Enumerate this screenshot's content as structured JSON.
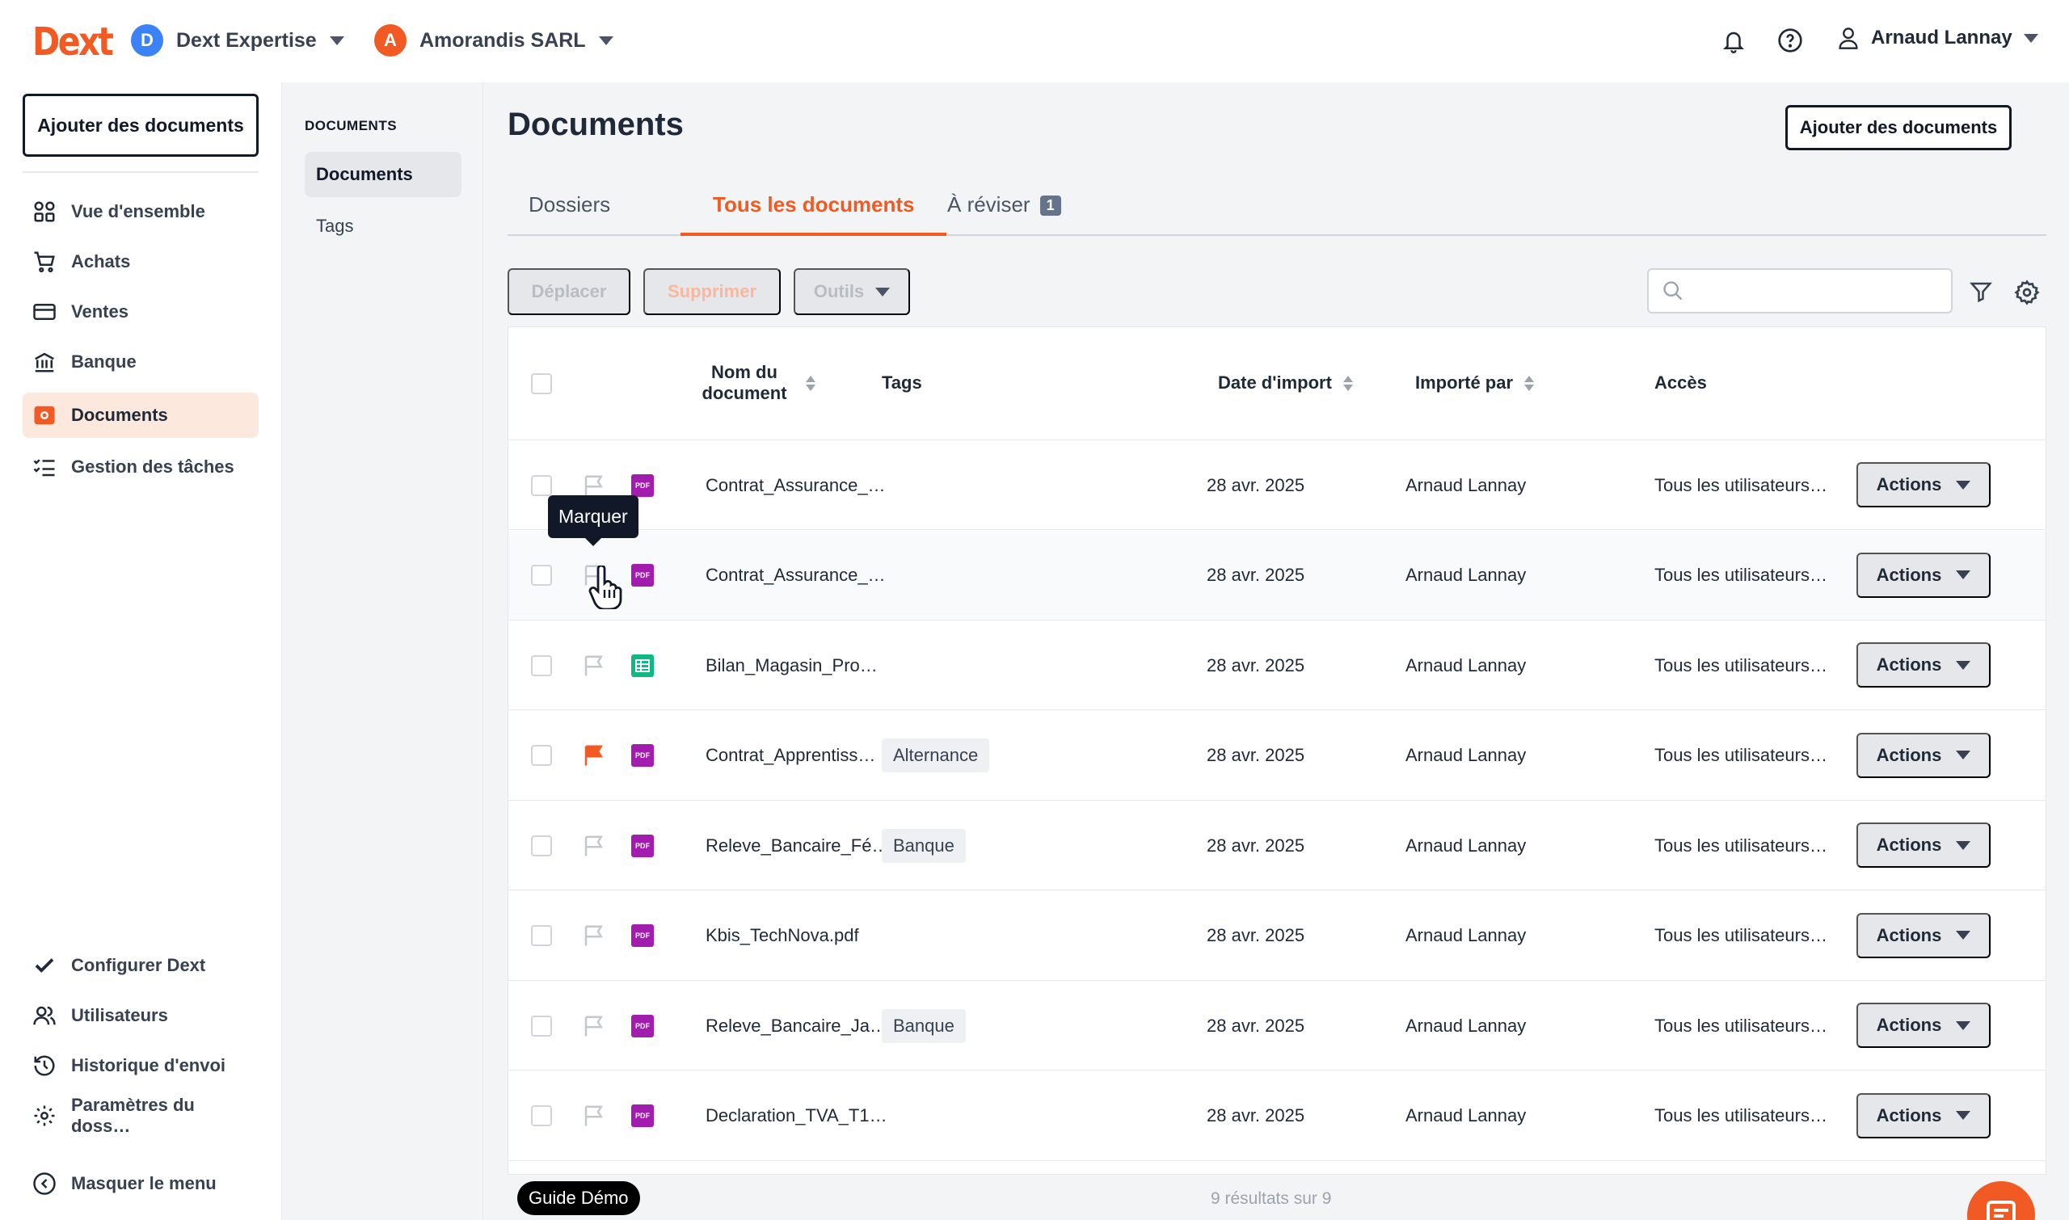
{
  "brand": {
    "logo_text": "Dext",
    "accent": "#f15a22"
  },
  "header": {
    "workspace": {
      "initial": "D",
      "name": "Dext Expertise",
      "color": "#3b82f6"
    },
    "client": {
      "initial": "A",
      "name": "Amorandis SARL",
      "color": "#f15a22"
    },
    "icons": [
      "bell-icon",
      "help-icon",
      "user-icon"
    ],
    "user_name": "Arnaud Lannay"
  },
  "sidebar": {
    "add_button": "Ajouter des documents",
    "items": [
      {
        "label": "Vue d'ensemble",
        "icon": "dashboard-icon"
      },
      {
        "label": "Achats",
        "icon": "cart-icon"
      },
      {
        "label": "Ventes",
        "icon": "card-icon"
      },
      {
        "label": "Banque",
        "icon": "bank-icon"
      },
      {
        "label": "Documents",
        "icon": "documents-icon",
        "active": true
      },
      {
        "label": "Gestion des tâches",
        "icon": "tasks-icon"
      }
    ],
    "bottom_items": [
      {
        "label": "Configurer Dext",
        "icon": "check-icon"
      },
      {
        "label": "Utilisateurs",
        "icon": "users-icon"
      },
      {
        "label": "Historique d'envoi",
        "icon": "history-icon"
      },
      {
        "label": "Paramètres du doss…",
        "icon": "gear-icon"
      }
    ],
    "collapse_label": "Masquer le menu"
  },
  "subnav": {
    "title": "DOCUMENTS",
    "items": [
      {
        "label": "Documents",
        "active": true
      },
      {
        "label": "Tags"
      }
    ]
  },
  "main": {
    "title": "Documents",
    "add_button": "Ajouter des documents",
    "tabs": [
      {
        "label": "Dossiers"
      },
      {
        "label": "Tous les documents",
        "active": true
      },
      {
        "label": "À réviser",
        "badge": "1"
      }
    ],
    "toolbar": {
      "move": "Déplacer",
      "delete": "Supprimer",
      "tools": "Outils",
      "search_placeholder": ""
    },
    "columns": {
      "name": "Nom du document",
      "tags": "Tags",
      "date": "Date d'import",
      "imported_by": "Importé par",
      "access": "Accès"
    },
    "rows": [
      {
        "name": "Contrat_Assurance_…",
        "type": "pdf",
        "flagged": false,
        "tag": "",
        "date": "28 avr. 2025",
        "by": "Arnaud Lannay",
        "access": "Tous les utilisateurs…",
        "action": "Actions"
      },
      {
        "name": "Contrat_Assurance_…",
        "type": "pdf",
        "flagged": false,
        "tag": "",
        "date": "28 avr. 2025",
        "by": "Arnaud Lannay",
        "access": "Tous les utilisateurs…",
        "action": "Actions"
      },
      {
        "name": "Bilan_Magasin_Pro…",
        "type": "sheet",
        "flagged": false,
        "tag": "",
        "date": "28 avr. 2025",
        "by": "Arnaud Lannay",
        "access": "Tous les utilisateurs…",
        "action": "Actions"
      },
      {
        "name": "Contrat_Apprentiss…",
        "type": "pdf",
        "flagged": true,
        "tag": "Alternance",
        "date": "28 avr. 2025",
        "by": "Arnaud Lannay",
        "access": "Tous les utilisateurs…",
        "action": "Actions"
      },
      {
        "name": "Releve_Bancaire_Fé…",
        "type": "pdf",
        "flagged": false,
        "tag": "Banque",
        "date": "28 avr. 2025",
        "by": "Arnaud Lannay",
        "access": "Tous les utilisateurs…",
        "action": "Actions"
      },
      {
        "name": "Kbis_TechNova.pdf",
        "type": "pdf",
        "flagged": false,
        "tag": "",
        "date": "28 avr. 2025",
        "by": "Arnaud Lannay",
        "access": "Tous les utilisateurs…",
        "action": "Actions"
      },
      {
        "name": "Releve_Bancaire_Ja…",
        "type": "pdf",
        "flagged": false,
        "tag": "Banque",
        "date": "28 avr. 2025",
        "by": "Arnaud Lannay",
        "access": "Tous les utilisateurs…",
        "action": "Actions"
      },
      {
        "name": "Declaration_TVA_T1…",
        "type": "pdf",
        "flagged": false,
        "tag": "",
        "date": "28 avr. 2025",
        "by": "Arnaud Lannay",
        "access": "Tous les utilisateurs…",
        "action": "Actions"
      }
    ],
    "tooltip": "Marquer",
    "results": "9 résultats sur 9",
    "pdf_label": "PDF",
    "colors": {
      "pdf": "#a21caf",
      "sheet": "#10b981",
      "flag_active": "#f15a22",
      "flag_idle": "#c4c8ce"
    }
  },
  "guide_button": "Guide Démo"
}
